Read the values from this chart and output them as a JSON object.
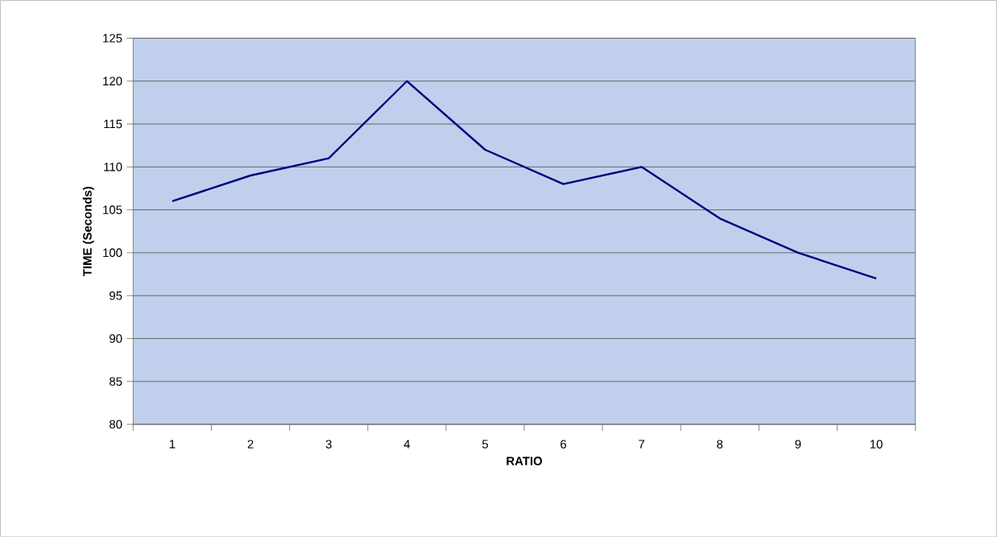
{
  "chart_data": {
    "type": "line",
    "xlabel": "RATIO",
    "ylabel": "TIME (Seconds)",
    "categories": [
      "1",
      "2",
      "3",
      "4",
      "5",
      "6",
      "7",
      "8",
      "9",
      "10"
    ],
    "series": [
      {
        "color": "#000080",
        "values": [
          106,
          109,
          111,
          120,
          112,
          108,
          110,
          104,
          100,
          97
        ]
      }
    ],
    "ylim": [
      80,
      125
    ],
    "yticks": [
      80,
      85,
      90,
      95,
      100,
      105,
      110,
      115,
      120,
      125
    ],
    "grid": "y",
    "marker": "none",
    "line_style": "solid"
  }
}
